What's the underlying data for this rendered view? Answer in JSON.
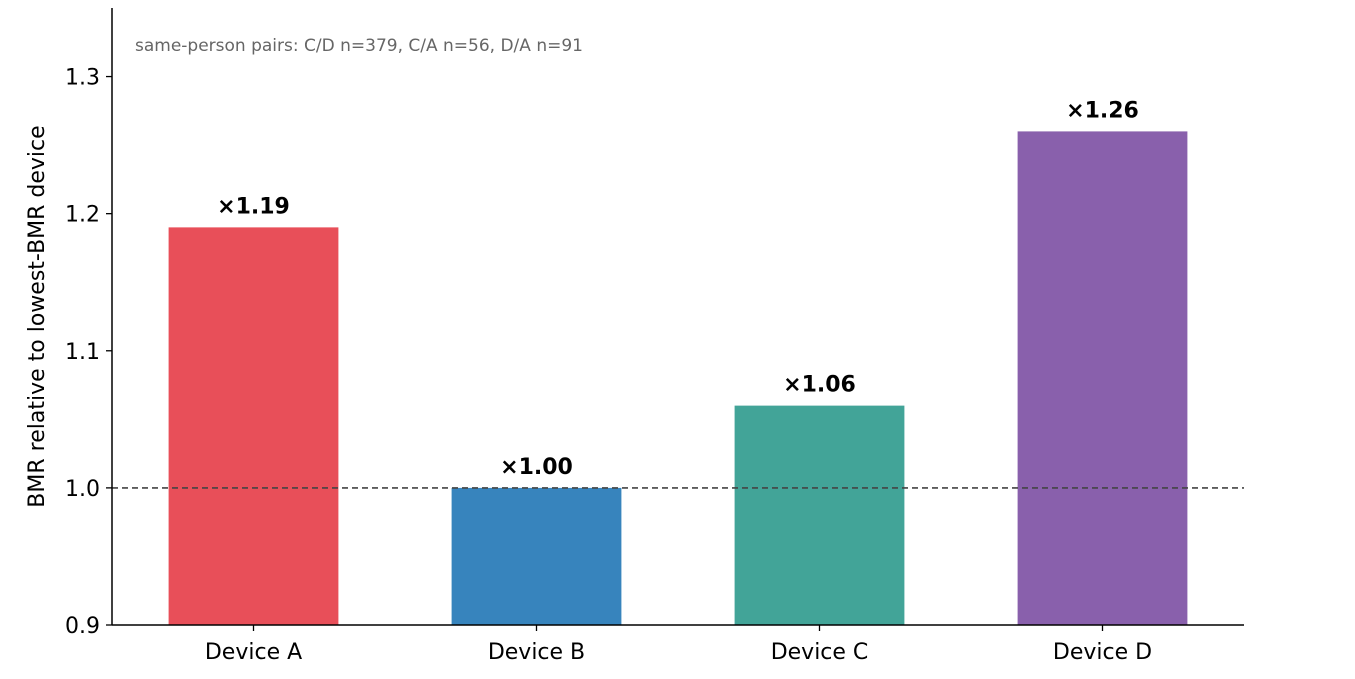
{
  "chart_data": {
    "type": "bar",
    "categories": [
      "Device A",
      "Device B",
      "Device C",
      "Device D"
    ],
    "values": [
      1.19,
      1.0,
      1.06,
      1.26
    ],
    "value_labels": [
      "×1.19",
      "×1.00",
      "×1.06",
      "×1.26"
    ],
    "colors": [
      "#e84f59",
      "#3784bd",
      "#42a498",
      "#8960ac"
    ],
    "title": "",
    "xlabel": "",
    "ylabel": "BMR relative to lowest-BMR device",
    "ylim": [
      0.9,
      1.35
    ],
    "yticks": [
      0.9,
      1.0,
      1.1,
      1.2,
      1.3
    ],
    "ytick_labels": [
      "0.9",
      "1.0",
      "1.1",
      "1.2",
      "1.3"
    ],
    "reference_line": 1.0,
    "annotation": "same-person pairs: C/D n=379, C/A n=56, D/A n=91",
    "grid": false,
    "reference_line_color": "#444444"
  }
}
